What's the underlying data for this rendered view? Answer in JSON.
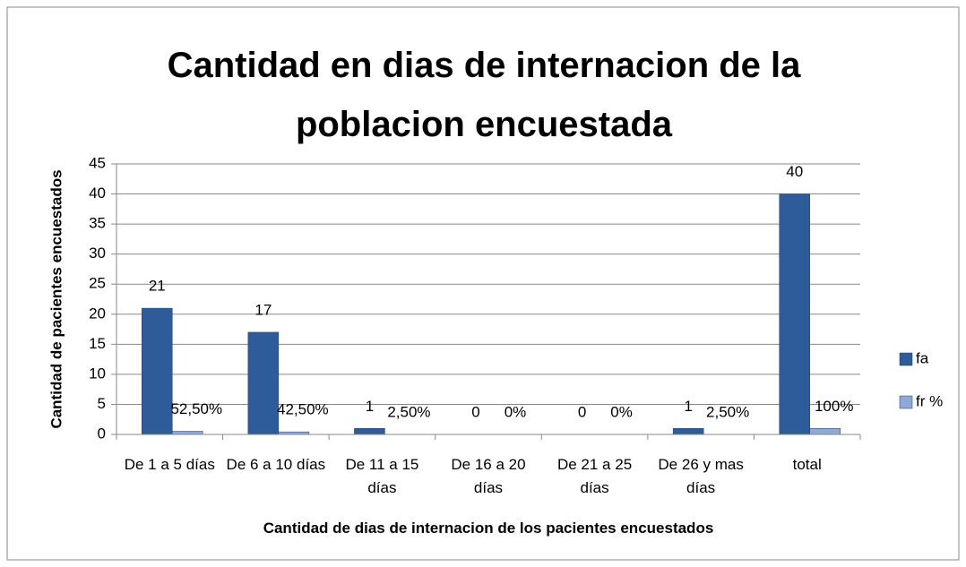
{
  "chart_data": {
    "type": "bar",
    "title": "Cantidad en dias de internacion de la poblacion encuestada",
    "x_label": "Cantidad de dias de internacion de los pacientes encuestados",
    "y_label": "Cantidad de pacientes encuestados",
    "categories": [
      "De 1 a 5 días",
      "De 6 a 10 días",
      "De 11 a 15 días",
      "De 16 a 20 días",
      "De 21 a 25 días",
      "De 26 y mas días",
      "total"
    ],
    "series": [
      {
        "name": "fa",
        "color": "#2e5c9a",
        "values": [
          21,
          17,
          1,
          0,
          0,
          1,
          40
        ]
      },
      {
        "name": "fr %",
        "color": "#8fa9d6",
        "values": [
          0.525,
          0.425,
          0.025,
          0,
          0,
          0.025,
          1
        ],
        "value_labels": [
          "52,50%",
          "42,50%",
          "2,50%",
          "0%",
          "0%",
          "2,50%",
          "100%"
        ]
      }
    ],
    "ylim": [
      0,
      45
    ],
    "yticks": [
      0,
      5,
      10,
      15,
      20,
      25,
      30,
      35,
      40,
      45
    ],
    "grid": true,
    "legend": "right"
  }
}
